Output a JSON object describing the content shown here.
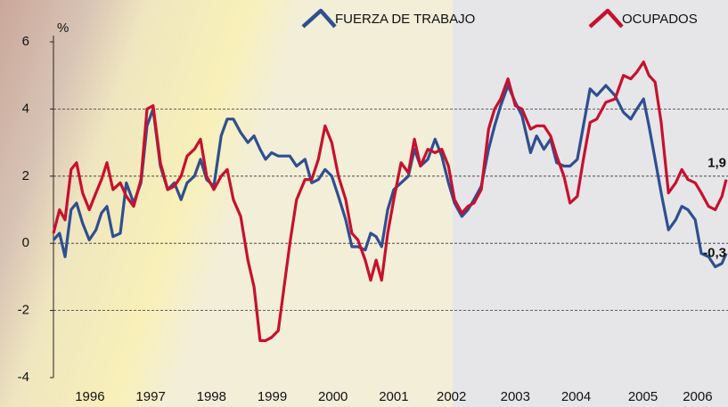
{
  "chart_data": {
    "type": "line",
    "y_label": "%",
    "x": [
      1995.9,
      1996.0,
      1996.09,
      1996.19,
      1996.28,
      1996.38,
      1996.49,
      1996.6,
      1996.69,
      1996.78,
      1996.88,
      1997.0,
      1997.1,
      1997.22,
      1997.34,
      1997.44,
      1997.54,
      1997.66,
      1997.78,
      1997.89,
      1998.0,
      1998.1,
      1998.22,
      1998.32,
      1998.42,
      1998.54,
      1998.66,
      1998.76,
      1998.86,
      1998.98,
      1999.1,
      1999.2,
      1999.3,
      1999.39,
      1999.49,
      1999.6,
      1999.68,
      1999.79,
      1999.9,
      2000.04,
      2000.15,
      2000.26,
      2000.37,
      2000.48,
      2000.59,
      2000.71,
      2000.81,
      2000.91,
      2001.03,
      2001.12,
      2001.21,
      2001.3,
      2001.4,
      2001.5,
      2001.62,
      2001.74,
      2001.84,
      2001.94,
      2002.06,
      2002.18,
      2002.29,
      2002.4,
      2002.5,
      2002.62,
      2002.72,
      2002.82,
      2002.94,
      2003.06,
      2003.16,
      2003.26,
      2003.38,
      2003.5,
      2003.61,
      2003.75,
      2003.85,
      2003.97,
      2004.08,
      2004.18,
      2004.3,
      2004.4,
      2004.52,
      2004.62,
      2004.73,
      2004.84,
      2004.99,
      2005.14,
      2005.28,
      2005.4,
      2005.5,
      2005.61,
      2005.7,
      2005.8,
      2005.9,
      2006.02,
      2006.14,
      2006.24,
      2006.34,
      2006.46,
      2006.56,
      2006.68,
      2006.79,
      2006.9,
      2006.97
    ],
    "series": [
      {
        "name": "FUERZA DE TRABAJO",
        "color": "#2f4f8f",
        "values": [
          0.1,
          0.3,
          -0.4,
          1.0,
          1.2,
          0.6,
          0.1,
          0.4,
          0.9,
          1.1,
          0.2,
          0.3,
          1.8,
          1.2,
          1.8,
          3.5,
          4.0,
          2.3,
          1.6,
          1.8,
          1.3,
          1.8,
          2.0,
          2.5,
          1.9,
          1.7,
          3.2,
          3.7,
          3.7,
          3.3,
          3.0,
          3.2,
          2.8,
          2.5,
          2.7,
          2.6,
          2.6,
          2.6,
          2.3,
          2.5,
          1.8,
          1.9,
          2.2,
          2.0,
          1.4,
          0.7,
          -0.1,
          -0.1,
          -0.2,
          0.3,
          0.2,
          -0.1,
          1.0,
          1.6,
          1.8,
          2.0,
          2.8,
          2.3,
          2.5,
          3.1,
          2.6,
          1.8,
          1.2,
          0.8,
          1.0,
          1.3,
          1.7,
          2.8,
          3.5,
          4.1,
          4.7,
          4.2,
          3.8,
          2.7,
          3.2,
          2.8,
          3.1,
          2.4,
          2.3,
          2.3,
          2.5,
          3.5,
          4.6,
          4.4,
          4.7,
          4.4,
          3.9,
          3.7,
          4.0,
          4.3,
          3.5,
          2.5,
          1.5,
          0.4,
          0.7,
          1.1,
          1.0,
          0.7,
          -0.3,
          -0.4,
          -0.7,
          -0.6,
          -0.3
        ],
        "value_labels": [
          null,
          null,
          null,
          null,
          null,
          null,
          null,
          null,
          null,
          null,
          null,
          null,
          null,
          null,
          null,
          null,
          null,
          null,
          null,
          null,
          null,
          null,
          null,
          null,
          null,
          null,
          null,
          null,
          null,
          null,
          null,
          null,
          null,
          null,
          null,
          null,
          null,
          null,
          null,
          null,
          null,
          null,
          null,
          null,
          null,
          null,
          null,
          null,
          null,
          null,
          null,
          null,
          null,
          null,
          null,
          null,
          null,
          null,
          null,
          null,
          null,
          null,
          null,
          null,
          null,
          null,
          null,
          null,
          null,
          null,
          null,
          null,
          null,
          null,
          null,
          null,
          null,
          null,
          null,
          null,
          null,
          null,
          null,
          null,
          null,
          null,
          null,
          null,
          null,
          null,
          null,
          null,
          null,
          null,
          null,
          null,
          null,
          null,
          null,
          null,
          null,
          null,
          "-0,3"
        ]
      },
      {
        "name": "OCUPADOS",
        "color": "#c8102e",
        "values": [
          0.3,
          1.0,
          0.7,
          2.2,
          2.4,
          1.5,
          1.0,
          1.5,
          1.9,
          2.4,
          1.6,
          1.8,
          1.4,
          1.1,
          1.9,
          4.0,
          4.1,
          2.4,
          1.6,
          1.7,
          2.0,
          2.6,
          2.8,
          3.1,
          2.0,
          1.6,
          2.0,
          2.2,
          1.3,
          0.8,
          -0.5,
          -1.3,
          -2.9,
          -2.9,
          -2.8,
          -2.6,
          -1.5,
          0.0,
          1.3,
          1.9,
          1.9,
          2.5,
          3.5,
          3.0,
          2.0,
          1.3,
          0.3,
          0.1,
          -0.5,
          -1.1,
          -0.5,
          -1.1,
          0.3,
          1.3,
          2.4,
          2.1,
          3.1,
          2.3,
          2.8,
          2.7,
          2.8,
          2.3,
          1.3,
          0.9,
          1.1,
          1.2,
          1.6,
          3.4,
          4.0,
          4.3,
          4.9,
          4.1,
          4.0,
          3.4,
          3.5,
          3.5,
          3.2,
          2.6,
          2.0,
          1.2,
          1.4,
          2.5,
          3.6,
          3.7,
          4.2,
          4.3,
          5.0,
          4.9,
          5.1,
          5.4,
          5.0,
          4.8,
          3.6,
          1.5,
          1.8,
          2.2,
          1.9,
          1.8,
          1.5,
          1.1,
          1.0,
          1.4,
          1.9
        ],
        "value_labels": [
          null,
          null,
          null,
          null,
          null,
          null,
          null,
          null,
          null,
          null,
          null,
          null,
          null,
          null,
          null,
          null,
          null,
          null,
          null,
          null,
          null,
          null,
          null,
          null,
          null,
          null,
          null,
          null,
          null,
          null,
          null,
          null,
          null,
          null,
          null,
          null,
          null,
          null,
          null,
          null,
          null,
          null,
          null,
          null,
          null,
          null,
          null,
          null,
          null,
          null,
          null,
          null,
          null,
          null,
          null,
          null,
          null,
          null,
          null,
          null,
          null,
          null,
          null,
          null,
          null,
          null,
          null,
          null,
          null,
          null,
          null,
          null,
          null,
          null,
          null,
          null,
          null,
          null,
          null,
          null,
          null,
          null,
          null,
          null,
          null,
          null,
          null,
          null,
          null,
          null,
          null,
          null,
          null,
          null,
          null,
          null,
          null,
          null,
          null,
          null,
          null,
          null,
          "1,9"
        ]
      }
    ],
    "xlim": [
      1995.9,
      2007.0
    ],
    "xticks": [
      {
        "value": 1996.5,
        "label": "1996"
      },
      {
        "value": 1997.5,
        "label": "1997"
      },
      {
        "value": 1998.5,
        "label": "1998"
      },
      {
        "value": 1999.5,
        "label": "1999"
      },
      {
        "value": 2000.5,
        "label": "2000"
      },
      {
        "value": 2001.5,
        "label": "2001"
      },
      {
        "value": 2002.45,
        "label": "2002"
      },
      {
        "value": 2003.5,
        "label": "2003"
      },
      {
        "value": 2004.5,
        "label": "2004"
      },
      {
        "value": 2005.6,
        "label": "2005"
      },
      {
        "value": 2006.5,
        "label": "2006"
      }
    ],
    "ylim": [
      -4,
      6
    ],
    "yticks": [
      -4,
      -2,
      0,
      2,
      4,
      6
    ],
    "grid": true
  }
}
